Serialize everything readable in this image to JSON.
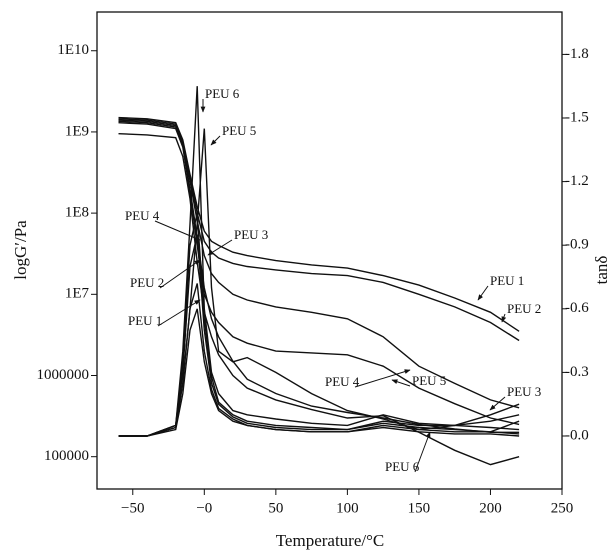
{
  "chart_data": {
    "type": "line",
    "x_label": "Temperature/°C",
    "y_label": "logG′/Pa",
    "y2_label": "tanδ",
    "x": [
      -60,
      -40,
      -20,
      -15,
      -10,
      -5,
      0,
      5,
      10,
      20,
      30,
      50,
      75,
      100,
      125,
      150,
      175,
      200,
      220
    ],
    "xlim": [
      -75,
      250
    ],
    "xticks": [
      {
        "value": -50,
        "label": "−50"
      },
      {
        "value": 0,
        "label": "−0"
      },
      50,
      100,
      150,
      200,
      250
    ],
    "ylim": [
      40000,
      30000000000
    ],
    "log_y": true,
    "yticks": [
      {
        "value": 10000000000,
        "label": "1E10"
      },
      {
        "value": 1000000000,
        "label": "1E9"
      },
      {
        "value": 100000000,
        "label": "1E8"
      },
      {
        "value": 10000000,
        "label": "1E7"
      },
      1000000,
      100000
    ],
    "y2lim": [
      -0.25,
      2.0
    ],
    "y2ticks": [
      {
        "value": 1.8,
        "label": "-1.8"
      },
      {
        "value": 1.5,
        "label": "-1.5"
      },
      {
        "value": 1.2,
        "label": "-1.2"
      },
      {
        "value": 0.9,
        "label": "-0.9"
      },
      {
        "value": 0.6,
        "label": "-0.6"
      },
      {
        "value": 0.3,
        "label": "-0.3"
      },
      {
        "value": 0.0,
        "label": "-0.0"
      }
    ],
    "series": [
      {
        "name": "PEU 1",
        "color": "#111111",
        "values": [
          1500000000,
          1450000000,
          1300000000,
          800000000,
          300000000,
          120000000,
          60000000,
          45000000,
          40000000,
          33000000,
          30000000,
          26000000,
          23000000,
          21000000,
          17000000,
          13000000,
          9000000,
          6000000,
          3500000
        ]
      },
      {
        "name": "PEU 2",
        "color": "#111111",
        "values": [
          1450000000,
          1400000000,
          1250000000,
          750000000,
          280000000,
          100000000,
          45000000,
          33000000,
          28000000,
          24000000,
          22000000,
          20000000,
          18000000,
          17000000,
          14000000,
          10000000,
          7000000,
          4500000,
          2700000
        ]
      },
      {
        "name": "PEU 3",
        "color": "#111111",
        "values": [
          1400000000,
          1350000000,
          1200000000,
          700000000,
          200000000,
          50000000,
          12000000,
          5000000,
          3000000,
          1500000,
          900000,
          600000,
          420000,
          350000,
          300000,
          250000,
          220000,
          200000,
          200000
        ]
      },
      {
        "name": "PEU 4",
        "color": "#111111",
        "values": [
          1350000000,
          1300000000,
          1150000000,
          700000000,
          250000000,
          80000000,
          30000000,
          18000000,
          14000000,
          10000000,
          8500000,
          7000000,
          6000000,
          5000000,
          3000000,
          1300000,
          800000,
          500000,
          400000
        ]
      },
      {
        "name": "PEU 5",
        "color": "#111111",
        "values": [
          1300000000,
          1250000000,
          1100000000,
          650000000,
          180000000,
          40000000,
          10000000,
          6000000,
          4500000,
          3000000,
          2500000,
          2000000,
          1900000,
          1800000,
          1300000,
          700000,
          450000,
          300000,
          250000
        ]
      },
      {
        "name": "PEU 6",
        "color": "#111111",
        "values": [
          950000000,
          920000000,
          850000000,
          500000000,
          150000000,
          25000000,
          6000000,
          3000000,
          1800000,
          1000000,
          700000,
          500000,
          380000,
          300000,
          320000,
          200000,
          120000,
          80000,
          100000
        ]
      },
      {
        "name": "PEU 1",
        "color": "#111111",
        "axis": "y2",
        "values": [
          0.0,
          0.0,
          0.03,
          0.2,
          0.5,
          0.6,
          0.35,
          0.2,
          0.12,
          0.07,
          0.05,
          0.03,
          0.02,
          0.02,
          0.04,
          0.02,
          0.01,
          0.01,
          0.0
        ]
      },
      {
        "name": "PEU 2",
        "color": "#111111",
        "axis": "y2",
        "values": [
          0.0,
          0.0,
          0.04,
          0.25,
          0.6,
          0.72,
          0.4,
          0.22,
          0.13,
          0.08,
          0.05,
          0.03,
          0.02,
          0.02,
          0.05,
          0.03,
          0.02,
          0.02,
          0.01
        ]
      },
      {
        "name": "PEU 3",
        "color": "#111111",
        "axis": "y2",
        "values": [
          0.0,
          0.0,
          0.05,
          0.3,
          0.8,
          0.95,
          0.5,
          0.25,
          0.15,
          0.09,
          0.06,
          0.04,
          0.03,
          0.03,
          0.06,
          0.04,
          0.03,
          0.02,
          0.07
        ]
      },
      {
        "name": "PEU 4",
        "color": "#111111",
        "axis": "y2",
        "values": [
          0.0,
          0.0,
          0.05,
          0.35,
          0.9,
          1.05,
          0.55,
          0.28,
          0.16,
          0.1,
          0.07,
          0.05,
          0.04,
          0.03,
          0.07,
          0.05,
          0.05,
          0.07,
          0.1
        ]
      },
      {
        "name": "PEU 5",
        "color": "#111111",
        "axis": "y2",
        "values": [
          0.0,
          0.0,
          0.04,
          0.25,
          0.6,
          1.0,
          1.45,
          0.7,
          0.4,
          0.35,
          0.37,
          0.3,
          0.2,
          0.12,
          0.08,
          0.03,
          0.05,
          0.1,
          0.15
        ]
      },
      {
        "name": "PEU 6",
        "color": "#111111",
        "axis": "y2",
        "values": [
          0.0,
          0.0,
          0.05,
          0.4,
          1.0,
          1.65,
          0.6,
          0.3,
          0.2,
          0.12,
          0.1,
          0.08,
          0.06,
          0.05,
          0.1,
          0.06,
          0.05,
          0.04,
          0.03
        ]
      }
    ]
  }
}
